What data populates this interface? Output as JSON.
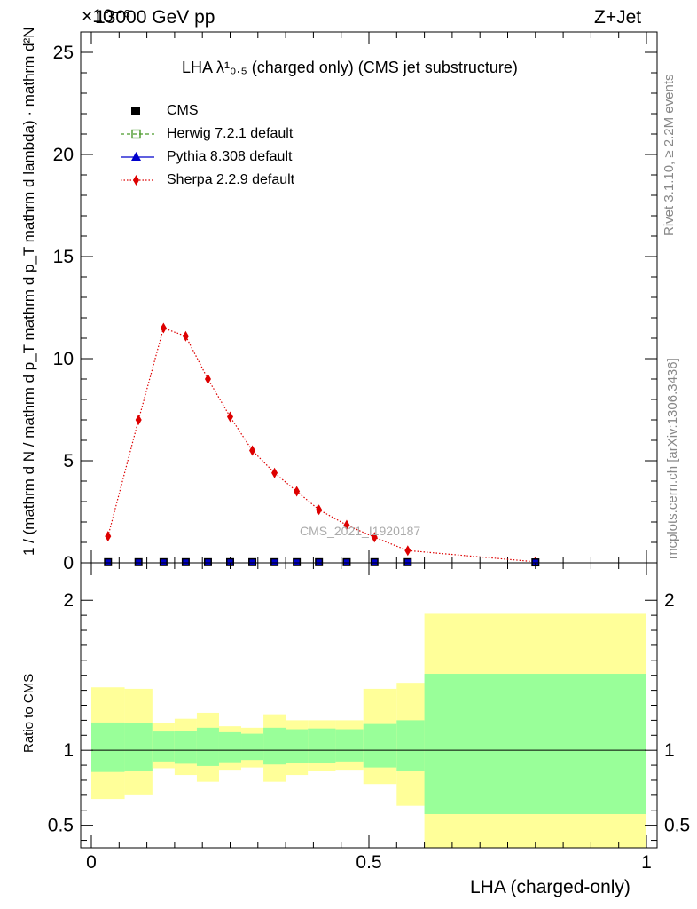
{
  "header": {
    "left": "13000 GeV pp",
    "right": "Z+Jet",
    "exponent": "×10⁻⁶"
  },
  "side_texts": {
    "rivet": "Rivet 3.1.10, ≥ 2.2M events",
    "mcplots": "mcplots.cern.ch [arXiv:1306.3436]"
  },
  "plot_title": "LHA λ¹₀.₅ (charged only) (CMS jet substructure)",
  "watermark": "CMS_2021_I1920187",
  "y_label_main": "1 / (mathrm d N / mathrm d p_T mathrm d p_T mathrm d lambda) · mathrm d²N",
  "y_label_ratio": "Ratio to CMS",
  "x_label": "LHA (charged-only)",
  "legend": [
    {
      "label": "CMS",
      "color": "#000000",
      "marker": "square"
    },
    {
      "label": "Herwig 7.2.1 default",
      "color": "#4a9a2a",
      "marker": "open-square"
    },
    {
      "label": "Pythia 8.308 default",
      "color": "#0000cc",
      "marker": "triangle"
    },
    {
      "label": "Sherpa 2.2.9 default",
      "color": "#dd0000",
      "marker": "diamond"
    }
  ],
  "chart_data": [
    {
      "type": "line",
      "title": "LHA λ¹₀.₅ (charged only) (CMS jet substructure)",
      "xlim": [
        0,
        1
      ],
      "ylim": [
        0,
        26
      ],
      "y_multiplier": "×10⁻⁶",
      "y_ticks": [
        0,
        5,
        10,
        15,
        20,
        25
      ],
      "x_ticks": [
        0,
        0.5,
        1
      ],
      "series": [
        {
          "name": "Sherpa 2.2.9 default",
          "x": [
            0.03,
            0.085,
            0.13,
            0.17,
            0.21,
            0.25,
            0.29,
            0.33,
            0.37,
            0.41,
            0.46,
            0.51,
            0.57,
            0.8
          ],
          "y": [
            1.3,
            7.0,
            11.5,
            11.1,
            9.0,
            7.15,
            5.5,
            4.4,
            3.5,
            2.6,
            1.85,
            1.25,
            0.6,
            0.05
          ]
        },
        {
          "name": "CMS",
          "x": [
            0.03,
            0.085,
            0.13,
            0.17,
            0.21,
            0.25,
            0.29,
            0.33,
            0.37,
            0.41,
            0.46,
            0.51,
            0.57,
            0.8
          ],
          "y": [
            0.03,
            0.03,
            0.03,
            0.03,
            0.03,
            0.03,
            0.03,
            0.03,
            0.03,
            0.03,
            0.03,
            0.03,
            0.03,
            0.02
          ]
        }
      ]
    },
    {
      "type": "area",
      "ylabel": "Ratio to CMS",
      "xlabel": "LHA (charged-only)",
      "xlim": [
        0,
        1
      ],
      "ylim": [
        0.35,
        2.25
      ],
      "y_ticks": [
        0.5,
        1,
        2
      ],
      "x_ticks": [
        0,
        0.5,
        1
      ],
      "bins": [
        0,
        0.06,
        0.11,
        0.15,
        0.19,
        0.23,
        0.27,
        0.31,
        0.35,
        0.39,
        0.44,
        0.49,
        0.55,
        0.6,
        1.0
      ],
      "band_inner_lo": [
        0.855,
        0.865,
        0.925,
        0.91,
        0.895,
        0.92,
        0.935,
        0.905,
        0.915,
        0.915,
        0.925,
        0.885,
        0.865,
        0.575
      ],
      "band_inner_hi": [
        1.185,
        1.18,
        1.125,
        1.13,
        1.15,
        1.12,
        1.11,
        1.15,
        1.14,
        1.145,
        1.14,
        1.175,
        1.2,
        1.51
      ],
      "band_outer_lo": [
        0.675,
        0.7,
        0.88,
        0.835,
        0.79,
        0.87,
        0.885,
        0.79,
        0.835,
        0.865,
        0.87,
        0.775,
        0.63,
        0.35
      ],
      "band_outer_hi": [
        1.42,
        1.41,
        1.18,
        1.21,
        1.25,
        1.16,
        1.15,
        1.24,
        1.2,
        1.2,
        1.2,
        1.41,
        1.45,
        1.91
      ],
      "reference": 1.0
    }
  ]
}
